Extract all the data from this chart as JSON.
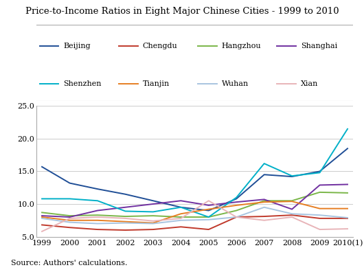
{
  "title": "Price-to-Income Ratios in Eight Major Chinese Cities - 1999 to 2010",
  "source": "Source: Authors' calculations.",
  "years": [
    "1999",
    "2000",
    "2001",
    "2002",
    "2003",
    "2004",
    "2005",
    "2006",
    "2007",
    "2008",
    "2009",
    "2010(1)"
  ],
  "ylim": [
    5.0,
    25.0
  ],
  "yticks": [
    5.0,
    10.0,
    15.0,
    20.0,
    25.0
  ],
  "series": [
    {
      "name": "Beijing",
      "color": "#1f4e96",
      "values": [
        15.7,
        13.2,
        12.3,
        11.5,
        10.5,
        9.5,
        9.0,
        10.8,
        14.5,
        14.2,
        15.0,
        18.5
      ]
    },
    {
      "name": "Chengdu",
      "color": "#c0392b",
      "values": [
        6.8,
        6.4,
        6.1,
        6.0,
        6.1,
        6.5,
        6.1,
        8.0,
        8.1,
        8.3,
        7.8,
        7.8
      ]
    },
    {
      "name": "Hangzhou",
      "color": "#7ab648",
      "values": [
        8.7,
        8.2,
        8.3,
        8.1,
        8.2,
        8.0,
        8.0,
        9.0,
        10.5,
        10.5,
        11.8,
        11.7
      ]
    },
    {
      "name": "Shanghai",
      "color": "#7030a0",
      "values": [
        8.2,
        8.0,
        9.0,
        9.5,
        10.0,
        10.5,
        9.8,
        10.3,
        10.7,
        9.2,
        12.9,
        13.0
      ]
    },
    {
      "name": "Shenzhen",
      "color": "#00b0c8",
      "values": [
        10.8,
        10.8,
        10.5,
        8.9,
        8.8,
        9.5,
        8.0,
        11.0,
        16.2,
        14.3,
        14.8,
        21.5
      ]
    },
    {
      "name": "Tianjin",
      "color": "#e67e22",
      "values": [
        8.0,
        7.5,
        7.5,
        7.3,
        7.1,
        8.5,
        9.2,
        9.8,
        10.3,
        10.4,
        9.3,
        9.3
      ]
    },
    {
      "name": "Wuhan",
      "color": "#a8c4e0",
      "values": [
        7.8,
        7.2,
        7.0,
        7.1,
        7.0,
        7.5,
        7.6,
        8.0,
        9.5,
        8.5,
        8.3,
        7.9
      ]
    },
    {
      "name": "Xian",
      "color": "#e8b4b8",
      "values": [
        5.8,
        7.8,
        8.0,
        7.8,
        7.4,
        7.8,
        10.5,
        8.0,
        7.5,
        8.0,
        6.1,
        6.2
      ]
    }
  ]
}
